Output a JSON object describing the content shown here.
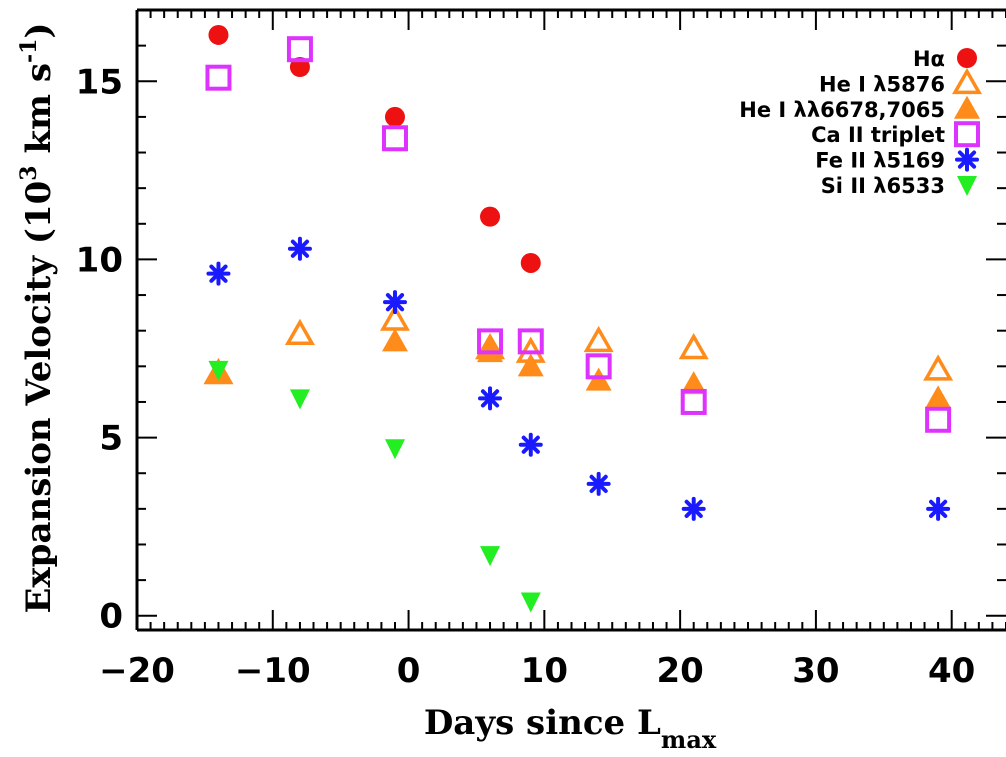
{
  "chart_data": {
    "type": "scatter",
    "title": "",
    "xlabel": "Days since L",
    "xlabel_sub": "max",
    "ylabel": "Expansion Velocity (10",
    "ylabel_sup": "3",
    "ylabel_units": " km s",
    "ylabel_units_sup": "-1",
    "ylabel_close": ")",
    "xlim": [
      -20,
      44
    ],
    "ylim": [
      -0.4,
      17
    ],
    "xticks": [
      -20,
      -10,
      0,
      10,
      20,
      30,
      40
    ],
    "xtick_labels": [
      "−20",
      "−10",
      "0",
      "10",
      "20",
      "30",
      "40"
    ],
    "yticks": [
      0,
      5,
      10,
      15
    ],
    "ytick_labels": [
      "0",
      "5",
      "10",
      "15"
    ],
    "legend_position": "top-right",
    "grid": false,
    "series": [
      {
        "name": "Hα",
        "marker": "circle-filled",
        "color": "#ee1111",
        "x": [
          -14,
          -8,
          -1,
          6,
          9
        ],
        "y": [
          16.3,
          15.4,
          14.0,
          11.2,
          9.9
        ]
      },
      {
        "name": "He I λ5876",
        "marker": "triangle-up-open",
        "color": "#ff8c1a",
        "x": [
          -14,
          -8,
          -1,
          6,
          9,
          14,
          21,
          39
        ],
        "y": [
          6.8,
          7.9,
          8.3,
          7.5,
          7.4,
          7.7,
          7.5,
          6.9
        ]
      },
      {
        "name": "He I λλ6678,7065",
        "marker": "triangle-up-filled",
        "color": "#ff8c1a",
        "x": [
          -14,
          -1,
          6,
          9,
          14,
          21,
          39
        ],
        "y": [
          6.8,
          7.7,
          7.4,
          7.0,
          6.6,
          6.5,
          6.1
        ]
      },
      {
        "name": "Ca II triplet",
        "marker": "square-open",
        "color": "#dd33ff",
        "x": [
          -14,
          -8,
          -1,
          6,
          9,
          14,
          21,
          39
        ],
        "y": [
          15.1,
          15.9,
          13.4,
          7.7,
          7.7,
          7.0,
          6.0,
          5.5
        ]
      },
      {
        "name": "Fe II λ5169",
        "marker": "asterisk",
        "color": "#1a1aff",
        "x": [
          -14,
          -8,
          -1,
          6,
          9,
          14,
          21,
          39
        ],
        "y": [
          9.6,
          10.3,
          8.8,
          6.1,
          4.8,
          3.7,
          3.0,
          3.0
        ]
      },
      {
        "name": "Si II λ6533",
        "marker": "triangle-down-filled",
        "color": "#22ee22",
        "x": [
          -14,
          -8,
          -1,
          6,
          9
        ],
        "y": [
          6.9,
          6.1,
          4.7,
          1.7,
          0.4
        ]
      }
    ]
  }
}
